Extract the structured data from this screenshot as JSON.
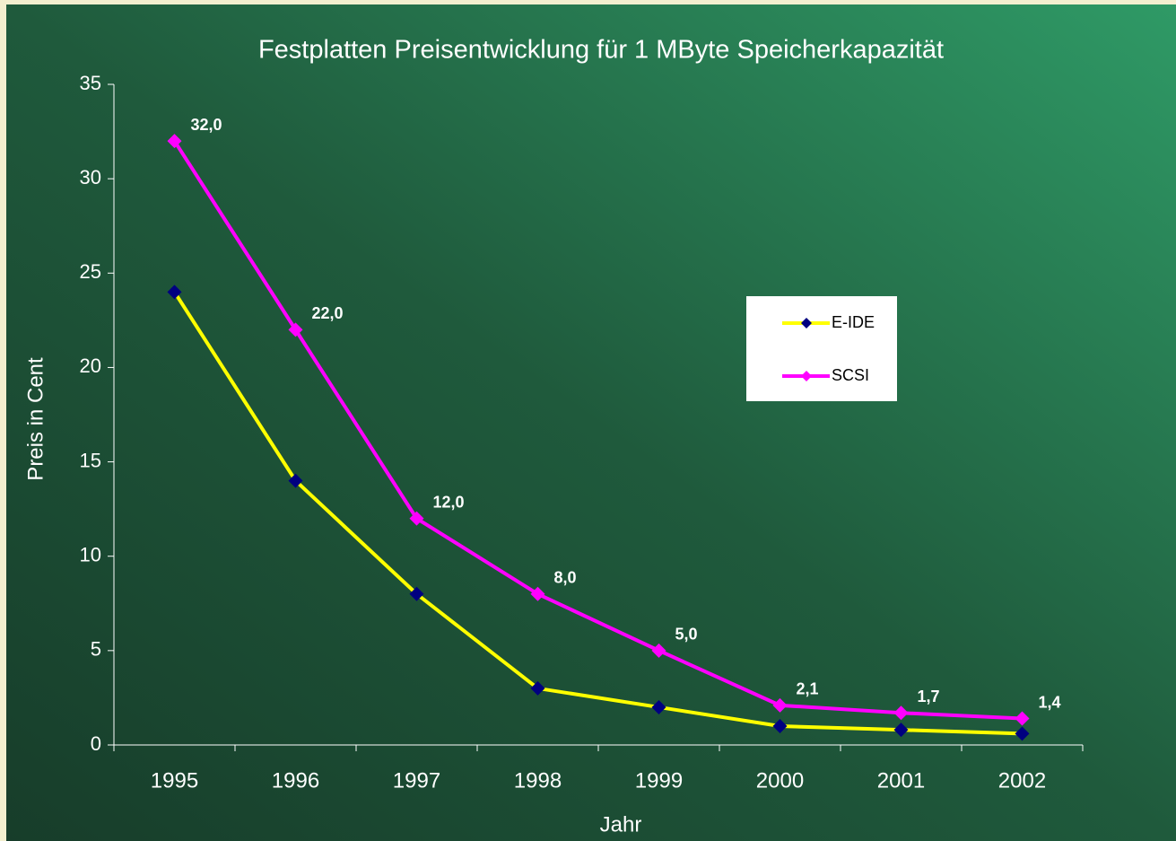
{
  "chart_data": {
    "type": "line",
    "title": "Festplatten Preisentwicklung für 1 MByte Speicherkapazität",
    "x_label": "Jahr",
    "y_label": "Preis in Cent",
    "categories": [
      "1995",
      "1996",
      "1997",
      "1998",
      "1999",
      "2000",
      "2001",
      "2002"
    ],
    "series": [
      {
        "name": "E-IDE",
        "color": "#ffff00",
        "marker_color": "#000080",
        "values": [
          24,
          14,
          8,
          3,
          2,
          1,
          0.8,
          0.6
        ]
      },
      {
        "name": "SCSI",
        "color": "#ff00ff",
        "marker_color": "#ff00ff",
        "values": [
          32,
          22,
          12,
          8,
          5,
          2.1,
          1.7,
          1.4
        ],
        "value_labels": [
          "32,0",
          "22,0",
          "12,0",
          "8,0",
          "5,0",
          "2,1",
          "1,7",
          "1,4"
        ]
      }
    ],
    "ylim": [
      0,
      35
    ],
    "yticks": [
      0,
      5,
      10,
      15,
      20,
      25,
      30,
      35
    ]
  }
}
